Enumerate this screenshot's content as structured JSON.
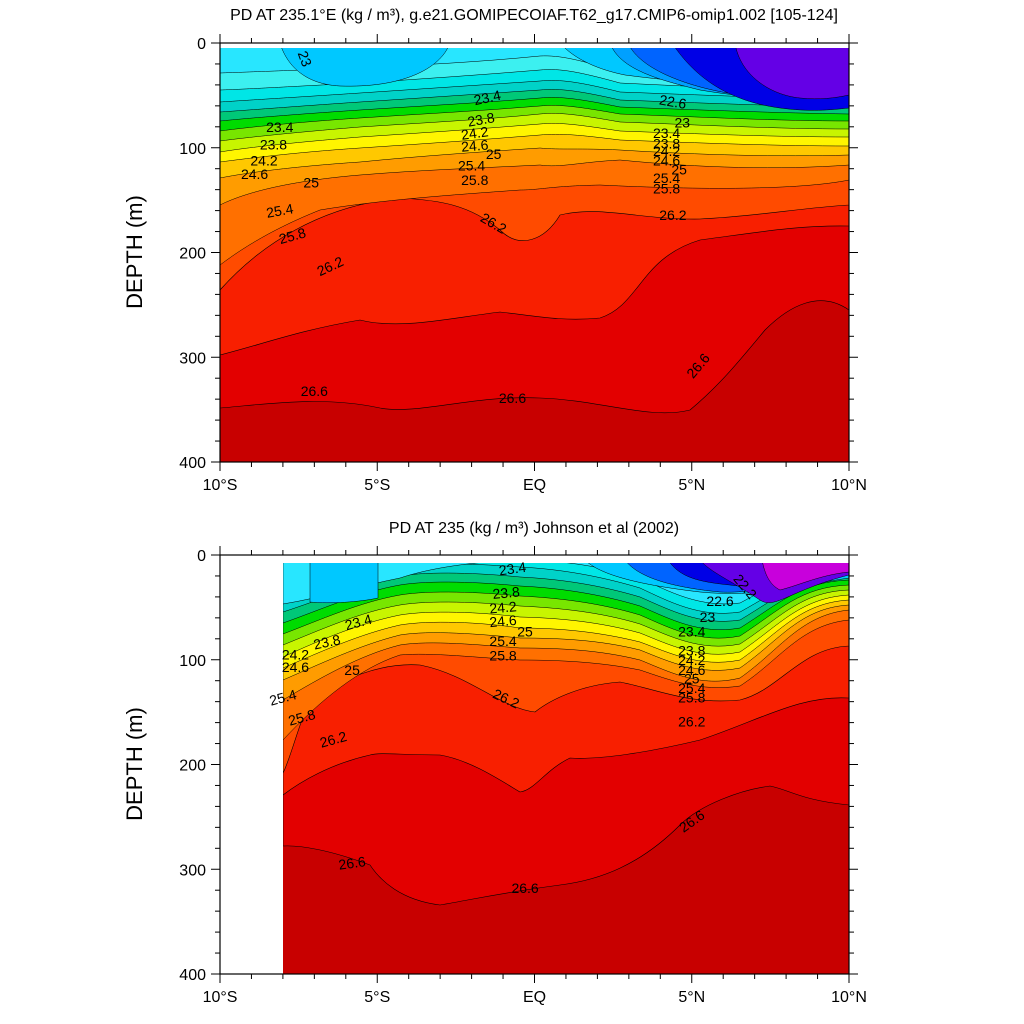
{
  "chart_data": [
    {
      "type": "contour",
      "title": "PD AT 235.1°E (kg / m³), g.e21.GOMIPECOIAF.T62_g17.CMIP6-omip1.002 [105-124]",
      "ylabel": "DEPTH (m)",
      "x_ticks": [
        "10°S",
        "5°S",
        "EQ",
        "5°N",
        "10°N"
      ],
      "y_ticks": [
        "0",
        "100",
        "200",
        "300",
        "400"
      ],
      "xlim": [
        -10,
        10
      ],
      "ylim": [
        400,
        0
      ],
      "y_reversed": true,
      "data_xlim": [
        -10,
        10
      ],
      "contour_levels": [
        22.6,
        23,
        23.4,
        23.8,
        24.2,
        24.6,
        25,
        25.4,
        25.8,
        26.2,
        26.6
      ],
      "contour_labels": [
        {
          "text": "23",
          "x": -7.3,
          "y": 15,
          "angle": 70
        },
        {
          "text": "23.4",
          "x": -1.5,
          "y": 52,
          "angle": -12
        },
        {
          "text": "22.6",
          "x": 4.4,
          "y": 56,
          "angle": 10
        },
        {
          "text": "23.4",
          "x": -8.1,
          "y": 80,
          "angle": 0
        },
        {
          "text": "23.8",
          "x": -1.7,
          "y": 73,
          "angle": -10
        },
        {
          "text": "23",
          "x": 4.7,
          "y": 76,
          "angle": 0
        },
        {
          "text": "23.8",
          "x": -8.3,
          "y": 97,
          "angle": 0
        },
        {
          "text": "24.2",
          "x": -1.9,
          "y": 86,
          "angle": -8
        },
        {
          "text": "23.4",
          "x": 4.2,
          "y": 86,
          "angle": 0
        },
        {
          "text": "24.2",
          "x": -8.6,
          "y": 112,
          "angle": 0
        },
        {
          "text": "24.6",
          "x": -1.9,
          "y": 98,
          "angle": -5
        },
        {
          "text": "25",
          "x": -1.3,
          "y": 106,
          "angle": 0
        },
        {
          "text": "23.8",
          "x": 4.2,
          "y": 96,
          "angle": 0
        },
        {
          "text": "24.2",
          "x": 4.2,
          "y": 103,
          "angle": 0
        },
        {
          "text": "24.6",
          "x": -8.9,
          "y": 125,
          "angle": 0
        },
        {
          "text": "25.4",
          "x": -2.0,
          "y": 117,
          "angle": 0
        },
        {
          "text": "24.6",
          "x": 4.2,
          "y": 112,
          "angle": 0
        },
        {
          "text": "25",
          "x": -7.1,
          "y": 133,
          "angle": 0
        },
        {
          "text": "25",
          "x": 4.6,
          "y": 121,
          "angle": 0
        },
        {
          "text": "25.8",
          "x": -1.9,
          "y": 131,
          "angle": 0
        },
        {
          "text": "25.4",
          "x": 4.2,
          "y": 129,
          "angle": 0
        },
        {
          "text": "25.8",
          "x": 4.2,
          "y": 139,
          "angle": 0
        },
        {
          "text": "25.4",
          "x": -8.1,
          "y": 160,
          "angle": -10
        },
        {
          "text": "26.2",
          "x": -1.3,
          "y": 172,
          "angle": 30
        },
        {
          "text": "26.2",
          "x": 4.4,
          "y": 164,
          "angle": 0
        },
        {
          "text": "25.8",
          "x": -7.7,
          "y": 184,
          "angle": -15
        },
        {
          "text": "26.2",
          "x": -6.5,
          "y": 213,
          "angle": -25
        },
        {
          "text": "26.6",
          "x": -7.0,
          "y": 332,
          "angle": 0
        },
        {
          "text": "26.6",
          "x": -0.7,
          "y": 339,
          "angle": 0
        },
        {
          "text": "26.6",
          "x": 5.2,
          "y": 308,
          "angle": -50
        }
      ]
    },
    {
      "type": "contour",
      "title": "PD AT 235 (kg / m³) Johnson et al (2002)",
      "ylabel": "DEPTH (m)",
      "x_ticks": [
        "10°S",
        "5°S",
        "EQ",
        "5°N",
        "10°N"
      ],
      "y_ticks": [
        "0",
        "100",
        "200",
        "300",
        "400"
      ],
      "xlim": [
        -10,
        10
      ],
      "ylim": [
        400,
        0
      ],
      "y_reversed": true,
      "data_xlim": [
        -8,
        10
      ],
      "contour_levels": [
        22.2,
        22.6,
        23,
        23.4,
        23.8,
        24.2,
        24.6,
        25,
        25.4,
        25.8,
        26.2,
        26.6
      ],
      "contour_labels": [
        {
          "text": "23.4",
          "x": -0.7,
          "y": 13,
          "angle": -8
        },
        {
          "text": "22.2",
          "x": 6.7,
          "y": 30,
          "angle": 50
        },
        {
          "text": "23.8",
          "x": -0.9,
          "y": 36,
          "angle": -5
        },
        {
          "text": "22.6",
          "x": 5.9,
          "y": 44,
          "angle": 0
        },
        {
          "text": "24.2",
          "x": -1.0,
          "y": 50,
          "angle": -5
        },
        {
          "text": "23",
          "x": 5.5,
          "y": 59,
          "angle": 0
        },
        {
          "text": "23.4",
          "x": -5.6,
          "y": 64,
          "angle": -15
        },
        {
          "text": "24.6",
          "x": -1.0,
          "y": 63,
          "angle": -5
        },
        {
          "text": "25",
          "x": -0.3,
          "y": 73,
          "angle": 0
        },
        {
          "text": "23.8",
          "x": -6.6,
          "y": 83,
          "angle": -12
        },
        {
          "text": "25.4",
          "x": -1.0,
          "y": 82,
          "angle": 0
        },
        {
          "text": "23.4",
          "x": 5.0,
          "y": 73,
          "angle": 0
        },
        {
          "text": "24.2",
          "x": -7.6,
          "y": 95,
          "angle": 0
        },
        {
          "text": "25.8",
          "x": -1.0,
          "y": 96,
          "angle": 0
        },
        {
          "text": "23.8",
          "x": 5.0,
          "y": 91,
          "angle": 0
        },
        {
          "text": "24.6",
          "x": -7.6,
          "y": 107,
          "angle": 0
        },
        {
          "text": "25",
          "x": -5.8,
          "y": 110,
          "angle": 0
        },
        {
          "text": "24.2",
          "x": 5.0,
          "y": 100,
          "angle": 0
        },
        {
          "text": "24.6",
          "x": 5.0,
          "y": 110,
          "angle": 0
        },
        {
          "text": "25",
          "x": 5.0,
          "y": 118,
          "angle": 0
        },
        {
          "text": "25.4",
          "x": 5.0,
          "y": 127,
          "angle": 0
        },
        {
          "text": "25.8",
          "x": 5.0,
          "y": 136,
          "angle": 0
        },
        {
          "text": "25.4",
          "x": -8.0,
          "y": 136,
          "angle": -15
        },
        {
          "text": "26.2",
          "x": -0.9,
          "y": 137,
          "angle": 25
        },
        {
          "text": "25.8",
          "x": -7.4,
          "y": 155,
          "angle": -15
        },
        {
          "text": "26.2",
          "x": 5.0,
          "y": 159,
          "angle": 0
        },
        {
          "text": "26.2",
          "x": -6.4,
          "y": 176,
          "angle": -15
        },
        {
          "text": "26.6",
          "x": 5.0,
          "y": 254,
          "angle": -35
        },
        {
          "text": "26.6",
          "x": -5.8,
          "y": 294,
          "angle": -8
        },
        {
          "text": "26.6",
          "x": -0.3,
          "y": 318,
          "angle": 0
        }
      ]
    }
  ]
}
